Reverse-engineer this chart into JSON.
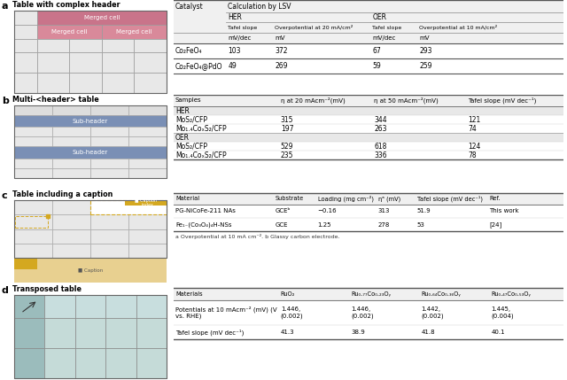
{
  "fig_width": 6.4,
  "fig_height": 4.29,
  "bg_color": "#ffffff",
  "panel_labels": [
    "a",
    "b",
    "c",
    "d"
  ],
  "panel_titles": [
    "Table with complex header",
    "Multi-<header> table",
    "Table including a caption",
    "Transposed table"
  ],
  "section_a": {
    "table": {
      "data_rows": [
        [
          "Co₂FeO₄",
          "103",
          "372",
          "67",
          "293"
        ],
        [
          "Co₂FeO₄@PdO",
          "49",
          "269",
          "59",
          "259"
        ]
      ]
    }
  },
  "section_b": {
    "table": {
      "header": [
        "Samples",
        "η at 20 mAcm⁻²(mV)",
        "η at 50 mAcm⁻²(mV)",
        "Tafel slope (mV dec⁻¹)"
      ],
      "section_rows": [
        {
          "label": "HER",
          "data": [
            [
              "MoS₂/CFP",
              "315",
              "344",
              "121"
            ],
            [
              "Mo₁.₄CoₓS₂/CFP",
              "197",
              "263",
              "74"
            ]
          ]
        },
        {
          "label": "OER",
          "data": [
            [
              "MoS₂/CFP",
              "529",
              "618",
              "124"
            ],
            [
              "Mo₁.₄CoₓS₂/CFP",
              "235",
              "336",
              "78"
            ]
          ]
        }
      ]
    }
  },
  "section_c": {
    "table": {
      "header": [
        "Material",
        "Substrate",
        "Loading (mg cm⁻²)",
        "ηᵃ (mV)",
        "Tafel slope (mV dec⁻¹)",
        "Ref."
      ],
      "data_rows": [
        [
          "PG-NiCoFe-211 NAs",
          "GCEᵇ",
          "−0.16",
          "313",
          "51.9",
          "This work"
        ],
        [
          "Fe₁₋(Co₃O₄)₄H-NSs",
          "GCE",
          "1.25",
          "278",
          "53",
          "[24]"
        ]
      ],
      "footnote": "a Overpotential at 10 mA cm⁻². b Glassy carbon electrode."
    }
  },
  "section_d": {
    "table": {
      "header": [
        "Materials",
        "RuO₂",
        "Ru₀.₇₇Co₀.₂₃Oᵧ",
        "Ru₀.₆₄Co₀.₃₆Oᵧ",
        "Ru₀.₄₇Co₀.₅₃Oᵧ"
      ],
      "data_rows": [
        [
          "Potentials at 10 mAcm⁻² (mV) (V\nvs. RHE)",
          "1.446,\n(0.002)",
          "1.446,\n(0.002)",
          "1.442,\n(0.002)",
          "1.445,\n(0.004)"
        ],
        [
          "Tafel slope (mV dec⁻¹)",
          "41.3",
          "38.9",
          "41.8",
          "40.1"
        ]
      ]
    }
  },
  "merged_top_color": "#c9748a",
  "merged_mid_color": "#d9899a",
  "subheader_color": "#7a8fb5",
  "caption_color": "#e8d090",
  "caption_index_color": "#d4a820",
  "teal_dark": "#9bbcbc",
  "teal_light": "#c8dede",
  "cell_gray": "#e8e8e8",
  "header_gray": "#f0f0f0",
  "section_label_gray": "#e8e8e8"
}
